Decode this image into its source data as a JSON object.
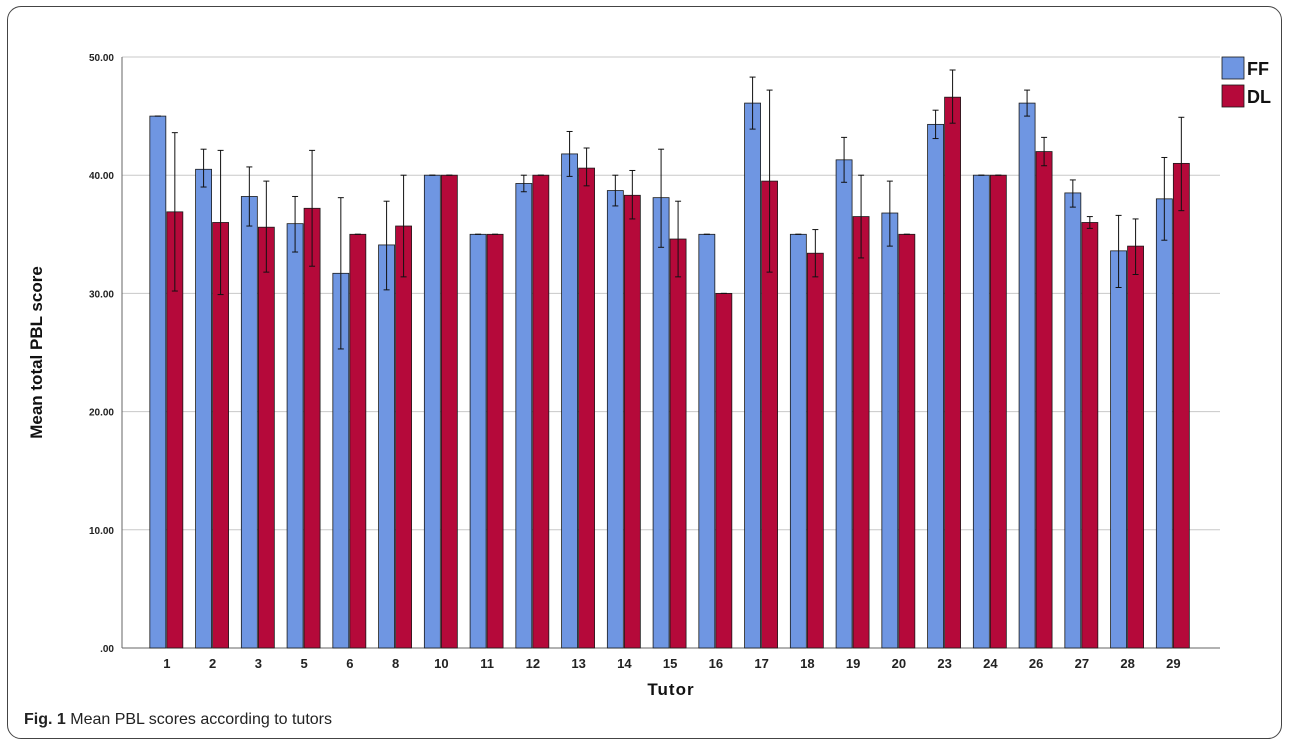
{
  "caption": {
    "label": "Fig. 1",
    "text": "Mean PBL scores according to tutors"
  },
  "chart_data": {
    "type": "bar",
    "xlabel": "Tutor",
    "ylabel": "Mean total PBL score",
    "ylim": [
      0,
      50
    ],
    "yticks": [
      ".00",
      "10.00",
      "20.00",
      "30.00",
      "40.00",
      "50.00"
    ],
    "grid": true,
    "legend_position": "top-right",
    "categories": [
      "1",
      "2",
      "3",
      "5",
      "6",
      "8",
      "10",
      "11",
      "12",
      "13",
      "14",
      "15",
      "16",
      "17",
      "18",
      "19",
      "20",
      "23",
      "24",
      "26",
      "27",
      "28",
      "29"
    ],
    "series": [
      {
        "name": "FF",
        "color": "#6f96e2",
        "values": [
          45,
          40.5,
          38.2,
          35.9,
          31.7,
          34.1,
          40,
          35,
          39.3,
          41.8,
          38.7,
          38.1,
          35,
          46.1,
          35,
          41.3,
          36.8,
          44.3,
          40,
          46.1,
          38.5,
          33.6,
          38
        ],
        "err": [
          [
            45,
            45
          ],
          [
            39.0,
            42.2
          ],
          [
            35.7,
            40.7
          ],
          [
            33.5,
            38.2
          ],
          [
            25.3,
            38.1
          ],
          [
            30.3,
            37.8
          ],
          [
            40,
            40
          ],
          [
            35,
            35
          ],
          [
            38.6,
            40.0
          ],
          [
            39.9,
            43.7
          ],
          [
            37.4,
            40.0
          ],
          [
            33.9,
            42.2
          ],
          [
            35,
            35
          ],
          [
            43.9,
            48.3
          ],
          [
            35,
            35
          ],
          [
            39.4,
            43.2
          ],
          [
            34.0,
            39.5
          ],
          [
            43.1,
            45.5
          ],
          [
            40,
            40
          ],
          [
            45.0,
            47.2
          ],
          [
            37.3,
            39.6
          ],
          [
            30.5,
            36.6
          ],
          [
            34.5,
            41.5
          ]
        ]
      },
      {
        "name": "DL",
        "color": "#b5093a",
        "values": [
          36.9,
          36,
          35.6,
          37.2,
          35,
          35.7,
          40,
          35,
          40,
          40.6,
          38.3,
          34.6,
          30,
          39.5,
          33.4,
          36.5,
          35,
          46.6,
          40,
          42,
          36,
          34,
          41
        ],
        "err": [
          [
            30.2,
            43.6
          ],
          [
            29.9,
            42.1
          ],
          [
            31.8,
            39.5
          ],
          [
            32.3,
            42.1
          ],
          [
            35,
            35
          ],
          [
            31.4,
            40.0
          ],
          [
            40,
            40
          ],
          [
            35,
            35
          ],
          [
            40,
            40
          ],
          [
            39.1,
            42.3
          ],
          [
            36.3,
            40.4
          ],
          [
            31.4,
            37.8
          ],
          [
            30,
            30
          ],
          [
            31.8,
            47.2
          ],
          [
            31.4,
            35.4
          ],
          [
            33.0,
            40.0
          ],
          [
            35,
            35
          ],
          [
            44.4,
            48.9
          ],
          [
            40,
            40
          ],
          [
            40.8,
            43.2
          ],
          [
            35.5,
            36.5
          ],
          [
            31.6,
            36.3
          ],
          [
            37.0,
            44.9
          ]
        ]
      }
    ]
  }
}
